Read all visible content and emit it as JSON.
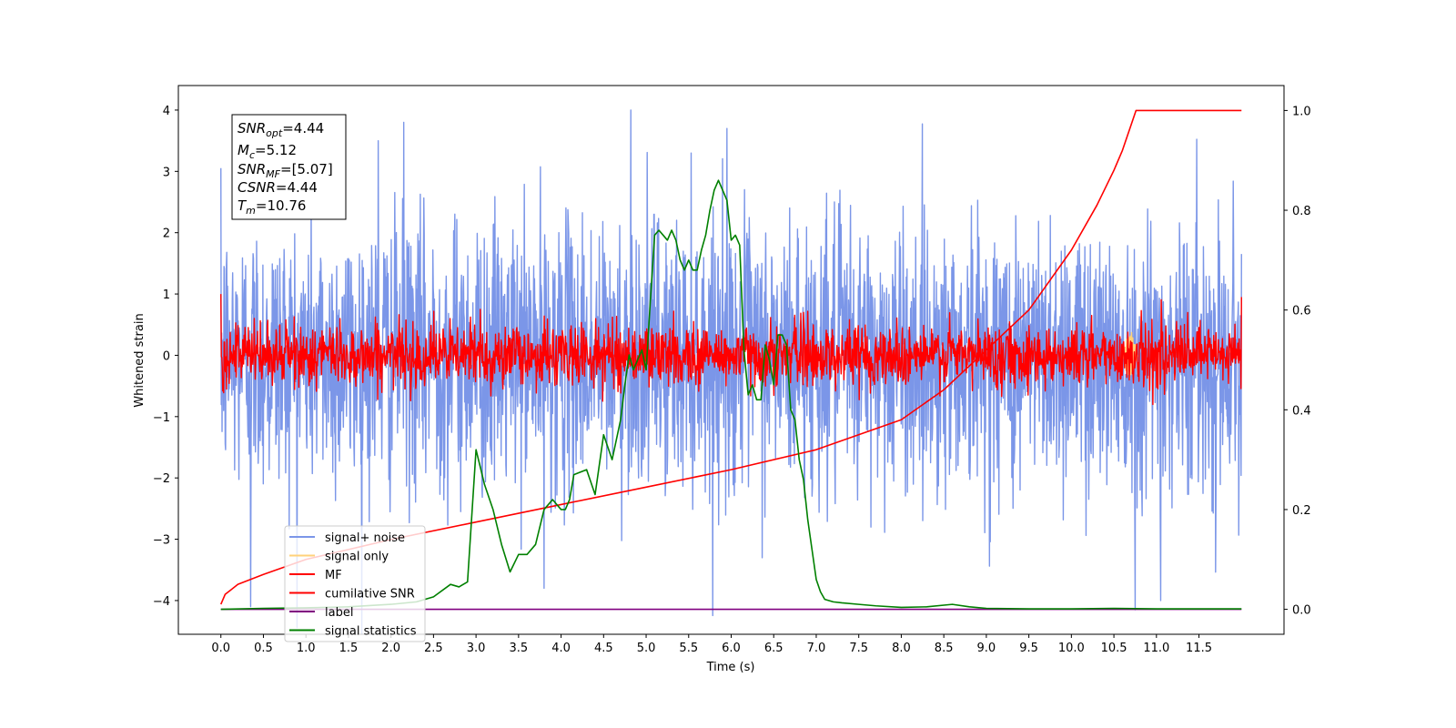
{
  "chart_data": {
    "type": "line",
    "title": "",
    "xlabel": "Time (s)",
    "ylabel": "Whitened strain",
    "y2label": "",
    "xlim": [
      -0.5,
      12.5
    ],
    "ylim": [
      -4.55,
      4.4
    ],
    "y2lim": [
      -0.05,
      1.05
    ],
    "xticks": [
      0.0,
      0.5,
      1.0,
      1.5,
      2.0,
      2.5,
      3.0,
      3.5,
      4.0,
      4.5,
      5.0,
      5.5,
      6.0,
      6.5,
      7.0,
      7.5,
      8.0,
      8.5,
      9.0,
      9.5,
      10.0,
      10.5,
      11.0,
      11.5
    ],
    "xtick_labels": [
      "0.0",
      "0.5",
      "1.0",
      "1.5",
      "2.0",
      "2.5",
      "3.0",
      "3.5",
      "4.0",
      "4.5",
      "5.0",
      "5.5",
      "6.0",
      "6.5",
      "7.0",
      "7.5",
      "8.0",
      "8.5",
      "9.0",
      "9.5",
      "10.0",
      "10.5",
      "11.0",
      "11.5"
    ],
    "yticks": [
      -4,
      -3,
      -2,
      -1,
      0,
      1,
      2,
      3,
      4
    ],
    "ytick_labels": [
      "−4",
      "−3",
      "−2",
      "−1",
      "0",
      "1",
      "2",
      "3",
      "4"
    ],
    "y2ticks": [
      0.0,
      0.2,
      0.4,
      0.6,
      0.8,
      1.0
    ],
    "y2tick_labels": [
      "0.0",
      "0.2",
      "0.4",
      "0.6",
      "0.8",
      "1.0"
    ],
    "grid": false,
    "legend_position": "lower-left",
    "info_box": {
      "lines": [
        {
          "main": "SNR",
          "sub": "opt",
          "value": "=4.44"
        },
        {
          "main": "M",
          "sub": "c",
          "value": "=5.12"
        },
        {
          "main": "SNR",
          "sub": "MF",
          "value": "=[5.07]"
        },
        {
          "main": "CSNR",
          "sub": "",
          "value": "=4.44"
        },
        {
          "main": "T",
          "sub": "m",
          "value": "=10.76"
        }
      ]
    },
    "series": [
      {
        "name": "signal+ noise",
        "axis": "left",
        "color": "#7b96e8",
        "kind": "noise",
        "x_range": [
          0.0,
          12.0
        ],
        "band_mean": 0.0,
        "band_spread": 1.1,
        "notable_peaks": [
          {
            "x": 4.82,
            "y": 4.0
          },
          {
            "x": 5.95,
            "y": 3.7
          },
          {
            "x": 2.15,
            "y": 3.8
          },
          {
            "x": 10.75,
            "y": -4.15
          },
          {
            "x": 11.05,
            "y": -4.0
          },
          {
            "x": 0.35,
            "y": -4.1
          },
          {
            "x": 1.85,
            "y": 3.5
          },
          {
            "x": 3.8,
            "y": -3.8
          }
        ]
      },
      {
        "name": "signal only",
        "axis": "left",
        "color": "#ffd27a",
        "kind": "burst",
        "x_range": [
          10.6,
          10.78
        ],
        "amplitude": 0.4
      },
      {
        "name": "MF",
        "axis": "left",
        "color": "#ff0000",
        "kind": "noise",
        "x_range": [
          0.0,
          12.0
        ],
        "band_mean": 0.0,
        "band_spread": 0.25,
        "notable_peaks": [
          {
            "x": 0.0,
            "y": 1.0
          },
          {
            "x": 12.0,
            "y": 0.95
          },
          {
            "x": 3.05,
            "y": 0.75
          },
          {
            "x": 6.85,
            "y": 0.7
          },
          {
            "x": 1.4,
            "y": 0.6
          }
        ]
      },
      {
        "name": "cumilative SNR",
        "axis": "right",
        "color": "#ff0000",
        "kind": "curve",
        "x": [
          0.0,
          0.05,
          0.2,
          0.5,
          1.0,
          2.0,
          3.0,
          4.0,
          5.0,
          6.0,
          7.0,
          8.0,
          8.5,
          9.0,
          9.5,
          10.0,
          10.3,
          10.5,
          10.6,
          10.7,
          10.76,
          12.0
        ],
        "values": [
          0.01,
          0.03,
          0.05,
          0.07,
          0.1,
          0.14,
          0.175,
          0.21,
          0.245,
          0.28,
          0.32,
          0.38,
          0.44,
          0.52,
          0.6,
          0.72,
          0.81,
          0.88,
          0.92,
          0.97,
          1.0,
          1.0
        ]
      },
      {
        "name": "label",
        "axis": "right",
        "color": "#800080",
        "kind": "curve",
        "x": [
          0.0,
          12.0
        ],
        "values": [
          0.0,
          0.0
        ]
      },
      {
        "name": "signal statistics",
        "axis": "right",
        "color": "#008000",
        "kind": "curve",
        "x": [
          0.0,
          0.5,
          1.0,
          1.5,
          2.0,
          2.3,
          2.5,
          2.7,
          2.8,
          2.9,
          3.0,
          3.1,
          3.2,
          3.3,
          3.4,
          3.5,
          3.6,
          3.7,
          3.8,
          3.9,
          4.0,
          4.05,
          4.1,
          4.15,
          4.3,
          4.4,
          4.5,
          4.6,
          4.7,
          4.75,
          4.8,
          4.85,
          4.9,
          4.95,
          5.0,
          5.05,
          5.1,
          5.15,
          5.2,
          5.25,
          5.3,
          5.35,
          5.4,
          5.45,
          5.5,
          5.55,
          5.6,
          5.65,
          5.7,
          5.75,
          5.8,
          5.85,
          5.9,
          5.95,
          6.0,
          6.05,
          6.1,
          6.15,
          6.2,
          6.25,
          6.3,
          6.35,
          6.4,
          6.45,
          6.5,
          6.55,
          6.6,
          6.65,
          6.7,
          6.75,
          6.8,
          6.85,
          6.9,
          6.95,
          7.0,
          7.05,
          7.1,
          7.2,
          7.3,
          7.5,
          7.7,
          8.0,
          8.3,
          8.6,
          8.8,
          9.0,
          9.5,
          10.0,
          10.5,
          11.0,
          11.5,
          12.0
        ],
        "values": [
          0.0,
          0.002,
          0.003,
          0.005,
          0.01,
          0.015,
          0.025,
          0.05,
          0.045,
          0.055,
          0.32,
          0.25,
          0.2,
          0.13,
          0.075,
          0.11,
          0.11,
          0.13,
          0.2,
          0.22,
          0.2,
          0.2,
          0.22,
          0.27,
          0.28,
          0.23,
          0.35,
          0.3,
          0.38,
          0.45,
          0.51,
          0.48,
          0.5,
          0.52,
          0.48,
          0.62,
          0.75,
          0.76,
          0.75,
          0.74,
          0.76,
          0.74,
          0.7,
          0.68,
          0.7,
          0.68,
          0.68,
          0.72,
          0.75,
          0.8,
          0.84,
          0.86,
          0.84,
          0.82,
          0.74,
          0.75,
          0.73,
          0.52,
          0.43,
          0.45,
          0.42,
          0.42,
          0.53,
          0.5,
          0.45,
          0.55,
          0.55,
          0.53,
          0.4,
          0.38,
          0.3,
          0.26,
          0.18,
          0.12,
          0.06,
          0.035,
          0.02,
          0.015,
          0.013,
          0.01,
          0.007,
          0.004,
          0.005,
          0.01,
          0.005,
          0.002,
          0.001,
          0.001,
          0.002,
          0.001,
          0.001,
          0.001
        ]
      }
    ]
  }
}
